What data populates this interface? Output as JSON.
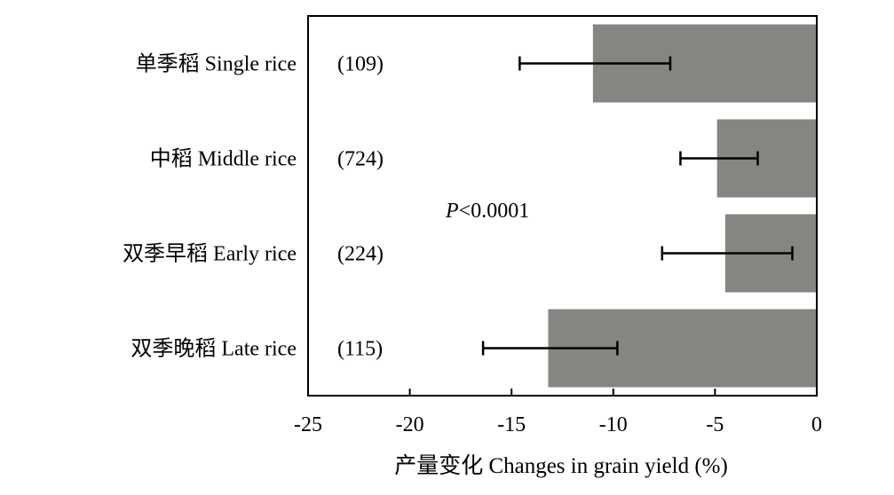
{
  "chart_data": {
    "type": "bar",
    "orientation": "horizontal",
    "categories": [
      "单季稻 Single rice",
      "中稻 Middle rice",
      "双季早稻 Early rice",
      "双季晚稻 Late rice"
    ],
    "sample_sizes": [
      "(109)",
      "(724)",
      "(224)",
      "(115)"
    ],
    "values": [
      -11.0,
      -4.9,
      -4.5,
      -13.2
    ],
    "error_low": [
      -14.6,
      -6.7,
      -7.6,
      -16.4
    ],
    "error_high": [
      -7.2,
      -2.9,
      -1.2,
      -9.8
    ],
    "xlabel": "产量变化 Changes in grain yield (%)",
    "xlim": [
      -25,
      0
    ],
    "xticks": [
      "-25",
      "-20",
      "-15",
      "-10",
      "-5",
      "0"
    ],
    "annotation": {
      "italic": "P",
      "rest": "<0.0001"
    },
    "bar_color": "#868581",
    "grid": false
  }
}
